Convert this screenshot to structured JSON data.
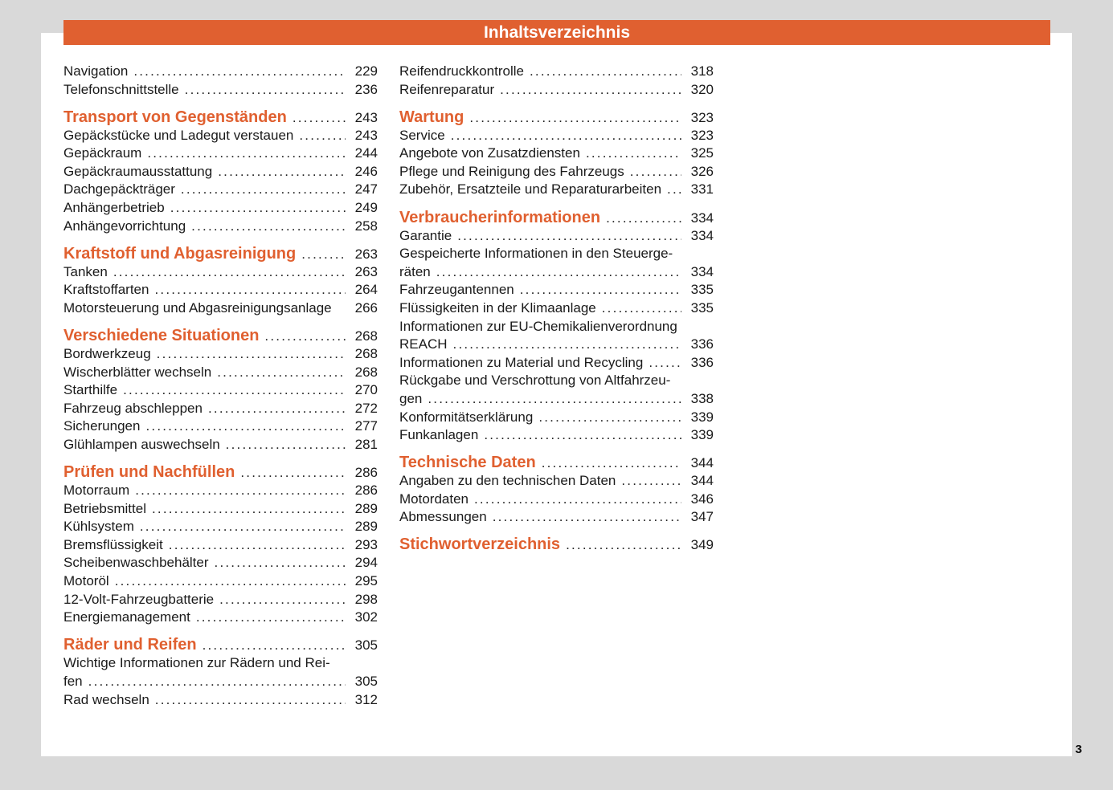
{
  "title": "Inhaltsverzeichnis",
  "page_number": "3",
  "accent_color": "#e06030",
  "columns": [
    [
      {
        "text": "Navigation",
        "page": "229"
      },
      {
        "text": "Telefonschnittstelle",
        "page": "236"
      },
      {
        "text": "Transport von Gegenständen",
        "page": "243",
        "heading": true
      },
      {
        "text": "Gepäckstücke und Ladegut verstauen",
        "page": "243"
      },
      {
        "text": "Gepäckraum",
        "page": "244"
      },
      {
        "text": "Gepäckraumausstattung",
        "page": "246"
      },
      {
        "text": "Dachgepäckträger",
        "page": "247"
      },
      {
        "text": "Anhängerbetrieb",
        "page": "249"
      },
      {
        "text": "Anhängevorrichtung",
        "page": "258"
      },
      {
        "text": "Kraftstoff und Abgasreinigung",
        "page": "263",
        "heading": true
      },
      {
        "text": "Tanken",
        "page": "263"
      },
      {
        "text": "Kraftstoffarten",
        "page": "264"
      },
      {
        "text": "Motorsteuerung und Abgasreinigungsanlage",
        "page": "266",
        "noleader": true
      },
      {
        "text": "Verschiedene Situationen",
        "page": "268",
        "heading": true
      },
      {
        "text": "Bordwerkzeug",
        "page": "268"
      },
      {
        "text": "Wischerblätter wechseln",
        "page": "268"
      },
      {
        "text": "Starthilfe",
        "page": "270"
      },
      {
        "text": "Fahrzeug abschleppen",
        "page": "272"
      },
      {
        "text": "Sicherungen",
        "page": "277"
      },
      {
        "text": "Glühlampen auswechseln",
        "page": "281"
      },
      {
        "text": "Prüfen und Nachfüllen",
        "page": "286",
        "heading": true
      },
      {
        "text": "Motorraum",
        "page": "286"
      },
      {
        "text": "Betriebsmittel",
        "page": "289"
      },
      {
        "text": "Kühlsystem",
        "page": "289"
      },
      {
        "text": "Bremsflüssigkeit",
        "page": "293"
      },
      {
        "text": "Scheibenwaschbehälter",
        "page": "294"
      },
      {
        "text": "Motoröl",
        "page": "295"
      },
      {
        "text": "12-Volt-Fahrzeugbatterie",
        "page": "298"
      },
      {
        "text": "Energiemanagement",
        "page": "302"
      },
      {
        "text": "Räder und Reifen",
        "page": "305",
        "heading": true
      },
      {
        "text": "fen",
        "first_line": "Wichtige Informationen zur Rädern und Rei-",
        "page": "305"
      },
      {
        "text": "Rad wechseln",
        "page": "312"
      }
    ],
    [
      {
        "text": "Reifendruckkontrolle",
        "page": "318"
      },
      {
        "text": "Reifenreparatur",
        "page": "320"
      },
      {
        "text": "Wartung",
        "page": "323",
        "heading": true
      },
      {
        "text": "Service",
        "page": "323"
      },
      {
        "text": "Angebote von Zusatzdiensten",
        "page": "325"
      },
      {
        "text": "Pflege und Reinigung des Fahrzeugs",
        "page": "326"
      },
      {
        "text": "Zubehör, Ersatzteile und Reparaturarbeiten",
        "page": "331"
      },
      {
        "text": "Verbraucherinformationen",
        "page": "334",
        "heading": true
      },
      {
        "text": "Garantie",
        "page": "334"
      },
      {
        "text": "räten",
        "first_line": "Gespeicherte Informationen in den Steuerge-",
        "page": "334"
      },
      {
        "text": "Fahrzeugantennen",
        "page": "335"
      },
      {
        "text": "Flüssigkeiten in der Klimaanlage",
        "page": "335"
      },
      {
        "text": "REACH",
        "first_line": "Informationen zur EU-Chemikalienverordnung",
        "page": "336"
      },
      {
        "text": "Informationen zu Material und Recycling",
        "page": "336"
      },
      {
        "text": "gen",
        "first_line": "Rückgabe und Verschrottung von Altfahrzeu-",
        "page": "338"
      },
      {
        "text": "Konformitätserklärung",
        "page": "339"
      },
      {
        "text": "Funkanlagen",
        "page": "339"
      },
      {
        "text": "Technische Daten",
        "page": "344",
        "heading": true
      },
      {
        "text": "Angaben zu den technischen Daten",
        "page": "344"
      },
      {
        "text": "Motordaten",
        "page": "346"
      },
      {
        "text": "Abmessungen",
        "page": "347"
      },
      {
        "text": "Stichwortverzeichnis",
        "page": "349",
        "heading": true
      }
    ]
  ]
}
